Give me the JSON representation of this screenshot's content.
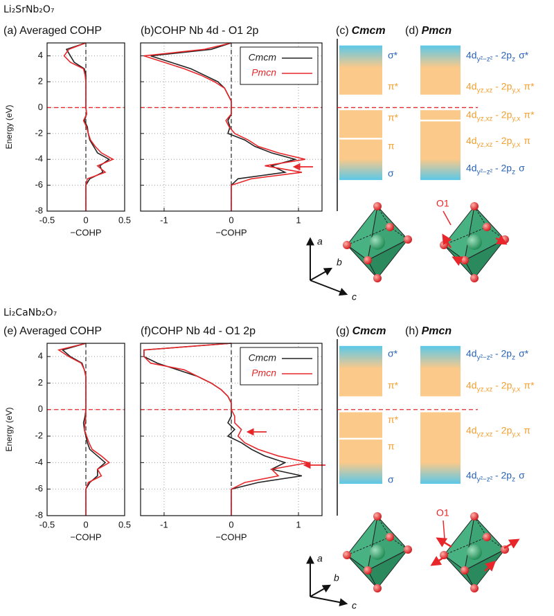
{
  "compounds": [
    "Li₂SrNb₂O₇",
    "Li₂CaNb₂O₇"
  ],
  "chart_data": [
    {
      "type": "line",
      "title": "(a) Averaged COHP",
      "xlabel": "−COHP",
      "ylabel": "Energy (eV)",
      "y": [
        -8,
        -7.5,
        -7,
        -6.5,
        -6,
        -5.5,
        -5,
        -4.5,
        -4,
        -3.5,
        -3,
        -2.5,
        -2,
        -1.5,
        -1,
        -0.5,
        0,
        0.5,
        1,
        1.5,
        2,
        2.5,
        3,
        3.5,
        4,
        4.5,
        5
      ],
      "series": [
        {
          "color": "#222222",
          "values": [
            0,
            0,
            0,
            0,
            0,
            0.05,
            0.22,
            0.18,
            0.3,
            0.15,
            0.1,
            0.05,
            0.03,
            0.02,
            -0.02,
            0.01,
            0,
            0,
            0,
            0,
            0,
            0,
            -0.02,
            -0.15,
            -0.2,
            -0.25,
            0
          ]
        },
        {
          "color": "#e8262a",
          "values": [
            0,
            0,
            0,
            0,
            0,
            0.02,
            0.25,
            0.15,
            0.35,
            0.2,
            0.12,
            0.06,
            0.03,
            0.01,
            -0.03,
            0.01,
            0,
            0,
            0,
            0,
            0,
            -0.01,
            -0.03,
            -0.2,
            -0.28,
            -0.22,
            0
          ]
        }
      ],
      "xlim": [
        -0.5,
        0.5
      ],
      "xticks": [
        -0.5,
        0,
        0.5
      ],
      "ylim": [
        -8,
        5
      ],
      "yticks": [
        -8,
        -6,
        -4,
        -2,
        0,
        2,
        4
      ],
      "grid": true
    },
    {
      "type": "line",
      "title": "(b)COHP  Nb 4d - O1 2p",
      "xlabel": "−COHP",
      "y": [
        -8,
        -7.5,
        -7,
        -6.5,
        -6,
        -5.5,
        -5,
        -4.5,
        -4,
        -3.5,
        -3,
        -2.5,
        -2,
        -1.5,
        -1,
        -0.5,
        0,
        0.5,
        1,
        1.5,
        2,
        2.5,
        3,
        3.5,
        4,
        4.5,
        5
      ],
      "series": [
        {
          "name": "Cmcm",
          "color": "#222222",
          "values": [
            0,
            0,
            0,
            0,
            0,
            0.1,
            0.8,
            0.6,
            0.95,
            0.6,
            0.35,
            0.2,
            -0.05,
            -0.02,
            -0.05,
            0,
            0,
            0,
            -0.05,
            -0.1,
            -0.2,
            -0.4,
            -0.6,
            -0.9,
            -1.2,
            -0.3,
            0
          ]
        },
        {
          "name": "Pmcn",
          "color": "#e8262a",
          "values": [
            0,
            0,
            0,
            0,
            0,
            0.3,
            1.05,
            0.5,
            1.1,
            0.7,
            0.4,
            0.25,
            0.05,
            -0.03,
            -0.08,
            0,
            0,
            0,
            -0.05,
            -0.1,
            -0.25,
            -0.45,
            -0.7,
            -1.0,
            -1.3,
            -0.4,
            0
          ]
        }
      ],
      "xlim": [
        -1.35,
        1.35
      ],
      "xticks": [
        -1,
        0,
        1
      ],
      "ylim": [
        -8,
        5
      ],
      "yticks": [
        -8,
        -6,
        -4,
        -2,
        0,
        2,
        4
      ],
      "ytick_labels": false,
      "grid": true,
      "legend": "upper right"
    },
    {
      "type": "line",
      "title": "(e) Averaged COHP",
      "xlabel": "−COHP",
      "ylabel": "Energy (eV)",
      "y": [
        -8,
        -7.5,
        -7,
        -6.5,
        -6,
        -5.5,
        -5,
        -4.5,
        -4,
        -3.5,
        -3,
        -2.5,
        -2,
        -1.5,
        -1,
        -0.5,
        0,
        0.5,
        1,
        1.5,
        2,
        2.5,
        3,
        3.5,
        4,
        4.5,
        5
      ],
      "series": [
        {
          "color": "#222222",
          "values": [
            0,
            0,
            0,
            0,
            0,
            0.05,
            0.15,
            0.15,
            0.25,
            0.15,
            0.05,
            0.02,
            0,
            -0.02,
            -0.03,
            -0.01,
            0,
            0,
            0,
            0,
            0,
            0,
            -0.02,
            -0.05,
            -0.2,
            -0.3,
            0
          ]
        },
        {
          "color": "#e8262a",
          "values": [
            0,
            0,
            0,
            0,
            0,
            0.03,
            0.2,
            0.15,
            0.3,
            0.2,
            0.08,
            0.04,
            0.01,
            -0.02,
            -0.01,
            0,
            0,
            0,
            0,
            0,
            0,
            0,
            -0.02,
            -0.06,
            -0.22,
            -0.35,
            0
          ]
        }
      ],
      "xlim": [
        -0.5,
        0.5
      ],
      "xticks": [
        -0.5,
        0,
        0.5
      ],
      "ylim": [
        -8,
        5
      ],
      "yticks": [
        -8,
        -6,
        -4,
        -2,
        0,
        2,
        4
      ],
      "grid": true
    },
    {
      "type": "line",
      "title": "(f)COHP  Nb 4d - O1 2p",
      "xlabel": "−COHP",
      "y": [
        -8,
        -7.5,
        -7,
        -6.5,
        -6,
        -5.5,
        -5,
        -4.5,
        -4,
        -3.5,
        -3,
        -2.5,
        -2,
        -1.5,
        -1,
        -0.5,
        0,
        0.5,
        1,
        1.5,
        2,
        2.5,
        3,
        3.5,
        4,
        4.5,
        5
      ],
      "series": [
        {
          "name": "Cmcm",
          "color": "#222222",
          "values": [
            0,
            0,
            0,
            0,
            0,
            0.4,
            1.05,
            0.6,
            0.8,
            0.5,
            0.3,
            0.15,
            -0.05,
            0.05,
            -0.05,
            0,
            0,
            0,
            -0.05,
            -0.15,
            -0.3,
            -0.5,
            -0.8,
            -1.1,
            -1.3,
            -1.3,
            0
          ]
        },
        {
          "name": "Pmcn",
          "color": "#e8262a",
          "values": [
            0,
            0,
            0,
            0,
            0,
            0.2,
            0.7,
            0.6,
            1.15,
            0.7,
            0.4,
            0.2,
            0.1,
            0.15,
            0.05,
            0.05,
            0,
            0,
            -0.05,
            -0.15,
            -0.3,
            -0.5,
            -0.7,
            -1.2,
            -1.3,
            -1.3,
            0
          ]
        }
      ],
      "xlim": [
        -1.35,
        1.35
      ],
      "xticks": [
        -1,
        0,
        1
      ],
      "ylim": [
        -8,
        5
      ],
      "yticks": [
        -8,
        -6,
        -4,
        -2,
        0,
        2,
        4
      ],
      "ytick_labels": false,
      "grid": true,
      "legend": "upper right"
    }
  ],
  "level_diagrams": [
    {
      "panel": "(c)",
      "group": "Cmcm",
      "split": true,
      "labels": [
        {
          "sym": "σ*",
          "color": "#2a63b8"
        },
        {
          "sym": "π*",
          "color": "#f0a030"
        },
        {
          "sym": "π*",
          "color": "#f0a030"
        },
        {
          "sym": "π",
          "color": "#f0a030"
        },
        {
          "sym": "σ",
          "color": "#2a63b8"
        }
      ]
    },
    {
      "panel": "(d)",
      "group": "Pmcn",
      "split": true,
      "labels": [
        {
          "a": "4d",
          "sub": "y²−z²",
          "b": " - 2p",
          "psub": "z",
          "sym": "σ*",
          "color": "#2a63b8"
        },
        {
          "a": "4d",
          "sub": "yz,xz",
          "b": " - 2p",
          "psub": "y,x",
          "sym": "π*",
          "color": "#f0a030"
        },
        {
          "a": "4d",
          "sub": "yz,xz",
          "b": " - 2p",
          "psub": "y,x",
          "sym": "π*",
          "color": "#f0a030"
        },
        {
          "a": "4d",
          "sub": "yz,xz",
          "b": " - 2p",
          "psub": "y,x",
          "sym": "π",
          "color": "#f0a030"
        },
        {
          "a": "4d",
          "sub": "y²−z²",
          "b": " - 2p",
          "psub": "z",
          "sym": "σ",
          "color": "#2a63b8"
        }
      ]
    },
    {
      "panel": "(g)",
      "group": "Cmcm",
      "split": true,
      "labels": [
        {
          "sym": "σ*",
          "color": "#2a63b8"
        },
        {
          "sym": "π*",
          "color": "#f0a030"
        },
        {
          "sym": "π*",
          "color": "#f0a030"
        },
        {
          "sym": "π",
          "color": "#f0a030"
        },
        {
          "sym": "σ",
          "color": "#2a63b8"
        }
      ]
    },
    {
      "panel": "(h)",
      "group": "Pmcn",
      "split": false,
      "labels": [
        {
          "a": "4d",
          "sub": "y²−z²",
          "b": " - 2p",
          "psub": "z",
          "sym": "σ*",
          "color": "#2a63b8"
        },
        {
          "a": "4d",
          "sub": "yz,xz",
          "b": " - 2p",
          "psub": "y,x",
          "sym": "π*",
          "color": "#f0a030"
        },
        {
          "a": "4d",
          "sub": "yz,xz",
          "b": " - 2p",
          "psub": "y,x",
          "sym": "π",
          "color": "#f0a030"
        },
        {
          "a": "4d",
          "sub": "y²−z²",
          "b": " - 2p",
          "psub": "z",
          "sym": "σ",
          "color": "#2a63b8"
        }
      ]
    }
  ],
  "structures": [
    {
      "site": "O1",
      "axes": [
        "a",
        "b",
        "c"
      ]
    },
    {
      "site": "O1",
      "axes": [
        "a",
        "b",
        "c"
      ]
    }
  ]
}
